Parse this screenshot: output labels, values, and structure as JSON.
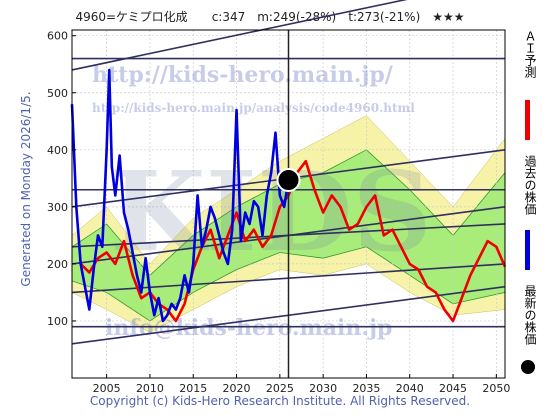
{
  "chart_data": {
    "type": "line",
    "title": "4960=ケミプロ化成　　c:347　m:249(-28%)　t:273(-21%)　★★★",
    "side_label": "Generated on Monday 2026/1/5.",
    "footer": "Copyright (c) Kids-Hero Research Institute. All Rights Reserved.",
    "watermarks": [
      "http://kids-hero.main.jp/",
      "http://kids-hero.main.jp/analysis/code4960.html",
      "KIDS",
      "info@kids-hero.main.jp"
    ],
    "xlim": [
      2001,
      2051
    ],
    "ylim": [
      0,
      610
    ],
    "x_ticks": [
      2005,
      2010,
      2015,
      2020,
      2025,
      2030,
      2035,
      2040,
      2045,
      2050
    ],
    "y_ticks": [
      100,
      200,
      300,
      400,
      500,
      600
    ],
    "current_marker": {
      "x": 2026.0,
      "y": 347,
      "vline_x": 2026.0
    },
    "series": [
      {
        "name": "過去の株価",
        "color": "#0000dd",
        "x": [
          2001.0,
          2001.5,
          2002.0,
          2002.5,
          2003.0,
          2003.5,
          2004.0,
          2004.5,
          2005.0,
          2005.3,
          2005.6,
          2006.0,
          2006.5,
          2007.0,
          2007.5,
          2008.0,
          2008.5,
          2009.0,
          2009.5,
          2010.0,
          2010.5,
          2011.0,
          2011.5,
          2012.0,
          2012.5,
          2013.0,
          2013.5,
          2014.0,
          2014.5,
          2015.0,
          2015.5,
          2016.0,
          2016.5,
          2017.0,
          2017.5,
          2018.0,
          2018.5,
          2019.0,
          2019.5,
          2020.0,
          2020.5,
          2021.0,
          2021.5,
          2022.0,
          2022.5,
          2023.0,
          2023.5,
          2024.0,
          2024.5,
          2025.0,
          2025.5,
          2026.0
        ],
        "y": [
          480,
          300,
          200,
          160,
          120,
          190,
          250,
          230,
          400,
          540,
          370,
          320,
          390,
          290,
          260,
          220,
          180,
          150,
          210,
          150,
          110,
          140,
          100,
          110,
          130,
          120,
          140,
          180,
          150,
          200,
          320,
          230,
          260,
          300,
          280,
          250,
          220,
          200,
          260,
          470,
          240,
          290,
          270,
          310,
          300,
          250,
          320,
          360,
          430,
          320,
          300,
          347
        ]
      },
      {
        "name": "ＡＩ予測",
        "color": "#ee0000",
        "x": [
          2002.0,
          2003.0,
          2004.0,
          2005.0,
          2006.0,
          2007.0,
          2008.0,
          2009.0,
          2010.0,
          2011.0,
          2012.0,
          2013.0,
          2014.0,
          2015.0,
          2016.0,
          2017.0,
          2018.0,
          2019.0,
          2020.0,
          2021.0,
          2022.0,
          2023.0,
          2024.0,
          2025.0,
          2026.0,
          2027.0,
          2028.0,
          2029.0,
          2030.0,
          2031.0,
          2032.0,
          2033.0,
          2034.0,
          2035.0,
          2036.0,
          2037.0,
          2038.0,
          2039.0,
          2040.0,
          2041.0,
          2042.0,
          2043.0,
          2044.0,
          2045.0,
          2046.0,
          2047.0,
          2048.0,
          2049.0,
          2050.0,
          2051.0
        ],
        "y": [
          200,
          185,
          210,
          220,
          200,
          240,
          180,
          140,
          150,
          130,
          120,
          100,
          130,
          190,
          230,
          260,
          210,
          250,
          290,
          240,
          260,
          230,
          250,
          300,
          320,
          360,
          380,
          330,
          290,
          320,
          300,
          260,
          270,
          300,
          320,
          250,
          260,
          230,
          200,
          190,
          160,
          150,
          120,
          100,
          140,
          180,
          210,
          240,
          230,
          195
        ]
      }
    ],
    "trend_lines": [
      {
        "x": [
          2001,
          2051
        ],
        "y": [
          560,
          560
        ]
      },
      {
        "x": [
          2001,
          2051
        ],
        "y": [
          540,
          700
        ]
      },
      {
        "x": [
          2001,
          2051
        ],
        "y": [
          300,
          400
        ]
      },
      {
        "x": [
          2001,
          2051
        ],
        "y": [
          200,
          300
        ]
      },
      {
        "x": [
          2001,
          2051
        ],
        "y": [
          230,
          270
        ]
      },
      {
        "x": [
          2001,
          2051
        ],
        "y": [
          150,
          200
        ]
      },
      {
        "x": [
          2001,
          2051
        ],
        "y": [
          330,
          330
        ]
      },
      {
        "x": [
          2001,
          2051
        ],
        "y": [
          90,
          90
        ]
      },
      {
        "x": [
          2001,
          2051
        ],
        "y": [
          60,
          160
        ]
      }
    ],
    "band": {
      "x": [
        2001,
        2005,
        2010,
        2015,
        2020,
        2025,
        2030,
        2035,
        2040,
        2045,
        2051
      ],
      "outer_upper": [
        250,
        300,
        200,
        280,
        330,
        380,
        420,
        460,
        380,
        300,
        420
      ],
      "outer_lower": [
        150,
        120,
        80,
        120,
        160,
        190,
        180,
        200,
        150,
        110,
        120
      ],
      "inner_upper": [
        230,
        270,
        180,
        250,
        300,
        340,
        360,
        400,
        330,
        250,
        360
      ],
      "inner_lower": [
        170,
        150,
        100,
        150,
        190,
        220,
        210,
        230,
        180,
        130,
        150
      ]
    },
    "legend": [
      {
        "label": "ＡＩ予測",
        "color": "#ee0000"
      },
      {
        "label": "過去の株価",
        "color": "#0000dd"
      },
      {
        "label": "最新の株価",
        "color": "#000000"
      }
    ]
  }
}
